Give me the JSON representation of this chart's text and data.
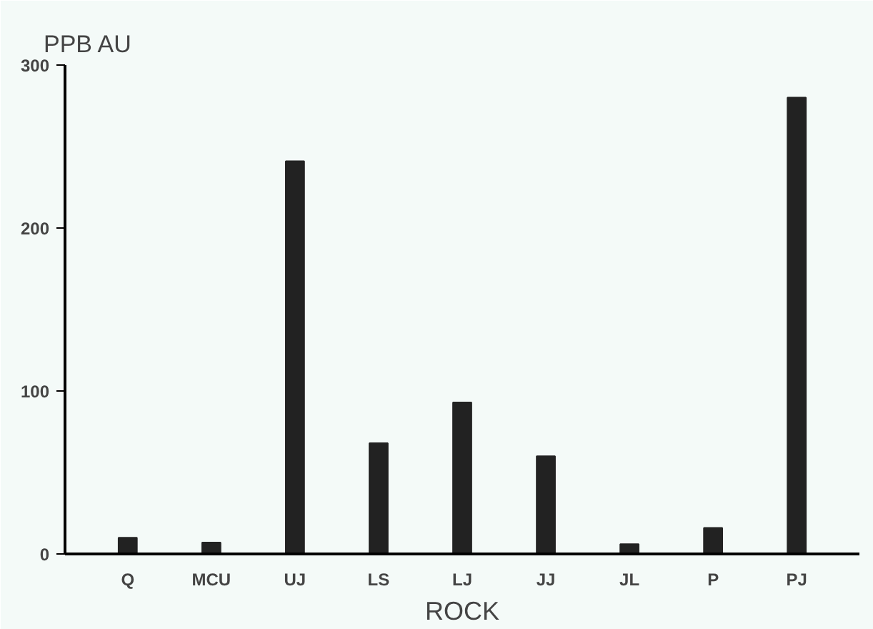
{
  "chart_data": {
    "type": "bar",
    "ylabel": "PPB AU",
    "xlabel": "ROCK",
    "categories": [
      "Q",
      "MCU",
      "UJ",
      "LS",
      "LJ",
      "JJ",
      "JL",
      "P",
      "PJ"
    ],
    "values": [
      10,
      7,
      241,
      68,
      93,
      60,
      6,
      16,
      280
    ],
    "color": "#222222",
    "ylim": [
      0,
      300
    ],
    "yticks": [
      0,
      100,
      200,
      300
    ],
    "grid": false
  }
}
